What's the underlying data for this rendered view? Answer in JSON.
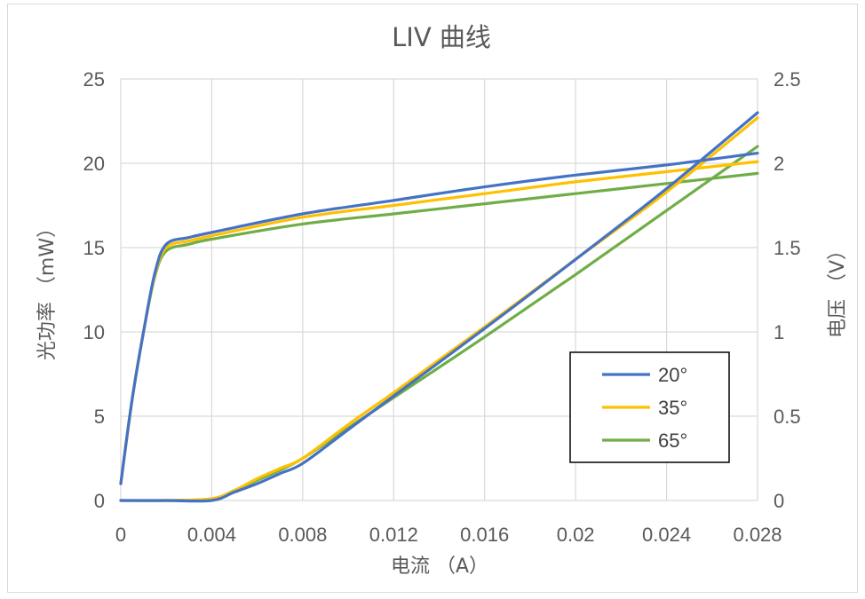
{
  "chart_data": {
    "type": "line",
    "title": "LIV 曲线",
    "xlabel": "电流 （A）",
    "ylabel_left": "光功率 （mW）",
    "ylabel_right": "电压 （V）",
    "xlim": [
      0,
      0.028
    ],
    "ylim_left": [
      0,
      25
    ],
    "ylim_right": [
      0,
      2.5
    ],
    "x_ticks": [
      "0",
      "0.004",
      "0.008",
      "0.012",
      "0.016",
      "0.02",
      "0.024",
      "0.028"
    ],
    "y_ticks_left": [
      "0",
      "5",
      "10",
      "15",
      "20",
      "25"
    ],
    "y_ticks_right": [
      "0",
      "0.5",
      "1",
      "1.5",
      "2",
      "2.5"
    ],
    "grid": true,
    "legend_position": "right-center",
    "colors": {
      "20°": "#4472C4",
      "35°": "#FFC000",
      "65°": "#70AD47",
      "grid": "#d9d9d9",
      "text": "#595959"
    },
    "series": [
      {
        "name": "20°",
        "axis": "right",
        "quantity": "voltage",
        "x": [
          0,
          0.002,
          0.004,
          0.005,
          0.006,
          0.007,
          0.008,
          0.01,
          0.012,
          0.016,
          0.02,
          0.024,
          0.028
        ],
        "y": [
          0,
          0,
          0,
          0.05,
          0.1,
          0.16,
          0.22,
          0.42,
          0.62,
          1.02,
          1.43,
          1.85,
          2.3
        ]
      },
      {
        "name": "20°",
        "axis": "left",
        "quantity": "optical power",
        "x": [
          0,
          0.0005,
          0.001,
          0.0015,
          0.002,
          0.003,
          0.004,
          0.008,
          0.012,
          0.016,
          0.02,
          0.024,
          0.028
        ],
        "y": [
          1.0,
          6.0,
          10.0,
          13.5,
          15.2,
          15.6,
          15.9,
          17.0,
          17.8,
          18.6,
          19.3,
          19.9,
          20.6
        ]
      },
      {
        "name": "35°",
        "axis": "right",
        "quantity": "voltage",
        "x": [
          0,
          0.002,
          0.004,
          0.005,
          0.006,
          0.007,
          0.008,
          0.01,
          0.012,
          0.016,
          0.02,
          0.024,
          0.028
        ],
        "y": [
          0,
          0,
          0.01,
          0.06,
          0.13,
          0.19,
          0.25,
          0.45,
          0.64,
          1.03,
          1.43,
          1.83,
          2.27
        ]
      },
      {
        "name": "35°",
        "axis": "left",
        "quantity": "optical power",
        "x": [
          0,
          0.0005,
          0.001,
          0.0015,
          0.002,
          0.003,
          0.004,
          0.008,
          0.012,
          0.016,
          0.02,
          0.024,
          0.028
        ],
        "y": [
          1.0,
          6.0,
          10.0,
          13.4,
          15.0,
          15.4,
          15.7,
          16.8,
          17.5,
          18.2,
          18.9,
          19.5,
          20.1
        ]
      },
      {
        "name": "65°",
        "axis": "right",
        "quantity": "voltage",
        "x": [
          0,
          0.002,
          0.004,
          0.005,
          0.006,
          0.007,
          0.008,
          0.01,
          0.012,
          0.016,
          0.02,
          0.024,
          0.028
        ],
        "y": [
          0,
          0,
          0.01,
          0.06,
          0.12,
          0.18,
          0.25,
          0.43,
          0.61,
          0.97,
          1.34,
          1.72,
          2.1
        ]
      },
      {
        "name": "65°",
        "axis": "left",
        "quantity": "optical power",
        "x": [
          0,
          0.0005,
          0.001,
          0.0015,
          0.002,
          0.003,
          0.004,
          0.008,
          0.012,
          0.016,
          0.02,
          0.024,
          0.028
        ],
        "y": [
          1.0,
          6.0,
          10.0,
          13.3,
          14.8,
          15.2,
          15.5,
          16.4,
          17.0,
          17.6,
          18.2,
          18.8,
          19.4
        ]
      }
    ],
    "legend": [
      "20°",
      "35°",
      "65°"
    ]
  }
}
